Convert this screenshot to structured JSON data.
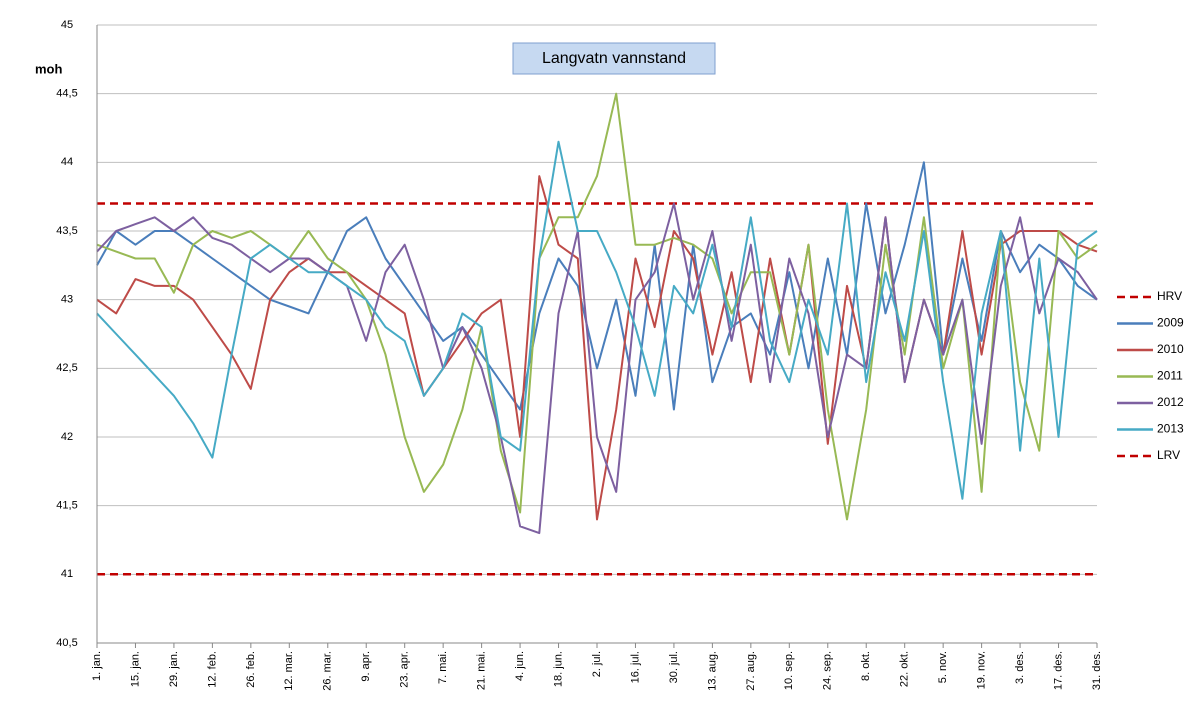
{
  "chart_data": {
    "type": "line",
    "title": "Langvatn vannstand",
    "y_label": "moh",
    "categories": [
      "1. jan.",
      null,
      "15. jan.",
      null,
      "29. jan.",
      null,
      "12. feb.",
      null,
      "26. feb.",
      null,
      "12. mar.",
      null,
      "26. mar.",
      null,
      "9. apr.",
      null,
      "23. apr.",
      null,
      "7. mai.",
      null,
      "21. mai.",
      null,
      "4. jun.",
      null,
      "18. jun.",
      null,
      "2. jul.",
      null,
      "16. jul.",
      null,
      "30. jul.",
      null,
      "13. aug.",
      null,
      "27. aug.",
      null,
      "10. sep.",
      null,
      "24. sep.",
      null,
      "8. okt.",
      null,
      "22. okt.",
      null,
      "5. nov.",
      null,
      "19. nov.",
      null,
      "3. des.",
      null,
      "17. des.",
      null,
      "31. des."
    ],
    "series": [
      {
        "name": "HRV",
        "color": "#c00000",
        "dashed": true,
        "values": [
          43.7,
          43.7,
          43.7,
          43.7,
          43.7,
          43.7,
          43.7,
          43.7,
          43.7,
          43.7,
          43.7,
          43.7,
          43.7,
          43.7,
          43.7,
          43.7,
          43.7,
          43.7,
          43.7,
          43.7,
          43.7,
          43.7,
          43.7,
          43.7,
          43.7,
          43.7,
          43.7,
          43.7,
          43.7,
          43.7,
          43.7,
          43.7,
          43.7,
          43.7,
          43.7,
          43.7,
          43.7,
          43.7,
          43.7,
          43.7,
          43.7,
          43.7,
          43.7,
          43.7,
          43.7,
          43.7,
          43.7,
          43.7,
          43.7,
          43.7,
          43.7,
          43.7,
          43.7
        ]
      },
      {
        "name": "2009",
        "color": "#4a7ebb",
        "dashed": false,
        "values": [
          43.25,
          43.5,
          43.4,
          43.5,
          43.5,
          43.4,
          43.3,
          43.2,
          43.1,
          43.0,
          42.95,
          42.9,
          43.2,
          43.5,
          43.6,
          43.3,
          43.1,
          42.9,
          42.7,
          42.8,
          42.6,
          42.4,
          42.2,
          42.9,
          43.3,
          43.1,
          42.5,
          43.0,
          42.3,
          43.4,
          42.2,
          43.4,
          42.4,
          42.8,
          42.9,
          42.6,
          43.2,
          42.5,
          43.3,
          42.6,
          43.7,
          42.9,
          43.4,
          44.0,
          42.6,
          43.3,
          42.7,
          43.5,
          43.2,
          43.4,
          43.3,
          43.1,
          43.0
        ]
      },
      {
        "name": "2010",
        "color": "#be4b48",
        "dashed": false,
        "values": [
          43.0,
          42.9,
          43.15,
          43.1,
          43.1,
          43.0,
          42.8,
          42.6,
          42.35,
          43.0,
          43.2,
          43.3,
          43.2,
          43.2,
          43.1,
          43.0,
          42.9,
          42.3,
          42.5,
          42.7,
          42.9,
          43.0,
          42.0,
          43.9,
          43.4,
          43.3,
          41.4,
          42.2,
          43.3,
          42.8,
          43.5,
          43.3,
          42.6,
          43.2,
          42.4,
          43.3,
          42.6,
          43.4,
          41.95,
          43.1,
          42.5,
          43.6,
          42.4,
          43.0,
          42.6,
          43.5,
          42.6,
          43.4,
          43.5,
          43.5,
          43.5,
          43.4,
          43.35
        ]
      },
      {
        "name": "2011",
        "color": "#98b954",
        "dashed": false,
        "values": [
          43.4,
          43.35,
          43.3,
          43.3,
          43.05,
          43.4,
          43.5,
          43.45,
          43.5,
          43.4,
          43.3,
          43.5,
          43.3,
          43.2,
          43.0,
          42.6,
          42.0,
          41.6,
          41.8,
          42.2,
          42.8,
          41.9,
          41.45,
          43.3,
          43.6,
          43.6,
          43.9,
          44.5,
          43.4,
          43.4,
          43.45,
          43.4,
          43.3,
          42.9,
          43.2,
          43.2,
          42.6,
          43.4,
          42.2,
          41.4,
          42.2,
          43.4,
          42.6,
          43.6,
          42.5,
          43.0,
          41.6,
          43.5,
          42.4,
          41.9,
          43.5,
          43.3,
          43.4
        ]
      },
      {
        "name": "2012",
        "color": "#7d60a0",
        "dashed": false,
        "values": [
          43.35,
          43.5,
          43.55,
          43.6,
          43.5,
          43.6,
          43.45,
          43.4,
          43.3,
          43.2,
          43.3,
          43.3,
          43.2,
          43.1,
          42.7,
          43.2,
          43.4,
          43.0,
          42.5,
          42.8,
          42.5,
          42.0,
          41.35,
          41.3,
          42.9,
          43.5,
          42.0,
          41.6,
          43.0,
          43.2,
          43.7,
          43.0,
          43.5,
          42.7,
          43.4,
          42.4,
          43.3,
          42.9,
          42.0,
          42.6,
          42.5,
          43.6,
          42.4,
          43.0,
          42.6,
          43.0,
          41.95,
          43.1,
          43.6,
          42.9,
          43.3,
          43.2,
          43.0
        ]
      },
      {
        "name": "2013",
        "color": "#46aac5",
        "dashed": false,
        "values": [
          42.9,
          42.75,
          42.6,
          42.45,
          42.3,
          42.1,
          41.85,
          42.6,
          43.3,
          43.4,
          43.3,
          43.2,
          43.2,
          43.1,
          43.0,
          42.8,
          42.7,
          42.3,
          42.5,
          42.9,
          42.8,
          42.0,
          41.9,
          43.3,
          44.15,
          43.5,
          43.5,
          43.2,
          42.8,
          42.3,
          43.1,
          42.9,
          43.4,
          42.8,
          43.6,
          42.7,
          42.4,
          43.0,
          42.6,
          43.7,
          42.4,
          43.2,
          42.7,
          43.5,
          42.4,
          41.55,
          42.9,
          43.5,
          41.9,
          43.3,
          42.0,
          43.4,
          43.5
        ]
      },
      {
        "name": "LRV",
        "color": "#c00000",
        "dashed": true,
        "values": [
          41,
          41,
          41,
          41,
          41,
          41,
          41,
          41,
          41,
          41,
          41,
          41,
          41,
          41,
          41,
          41,
          41,
          41,
          41,
          41,
          41,
          41,
          41,
          41,
          41,
          41,
          41,
          41,
          41,
          41,
          41,
          41,
          41,
          41,
          41,
          41,
          41,
          41,
          41,
          41,
          41,
          41,
          41,
          41,
          41,
          41,
          41,
          41,
          41,
          41,
          41,
          41,
          41
        ]
      }
    ],
    "ylim": [
      40.5,
      45
    ],
    "yticks": [
      {
        "value": 40.5,
        "label": "40,5"
      },
      41,
      {
        "value": 41.5,
        "label": "41,5"
      },
      42,
      {
        "value": 42.5,
        "label": "42,5"
      },
      43,
      {
        "value": 43.5,
        "label": "43,5"
      },
      44,
      {
        "value": 44.5,
        "label": "44,5"
      },
      45
    ],
    "grid": true,
    "legend": "right"
  }
}
